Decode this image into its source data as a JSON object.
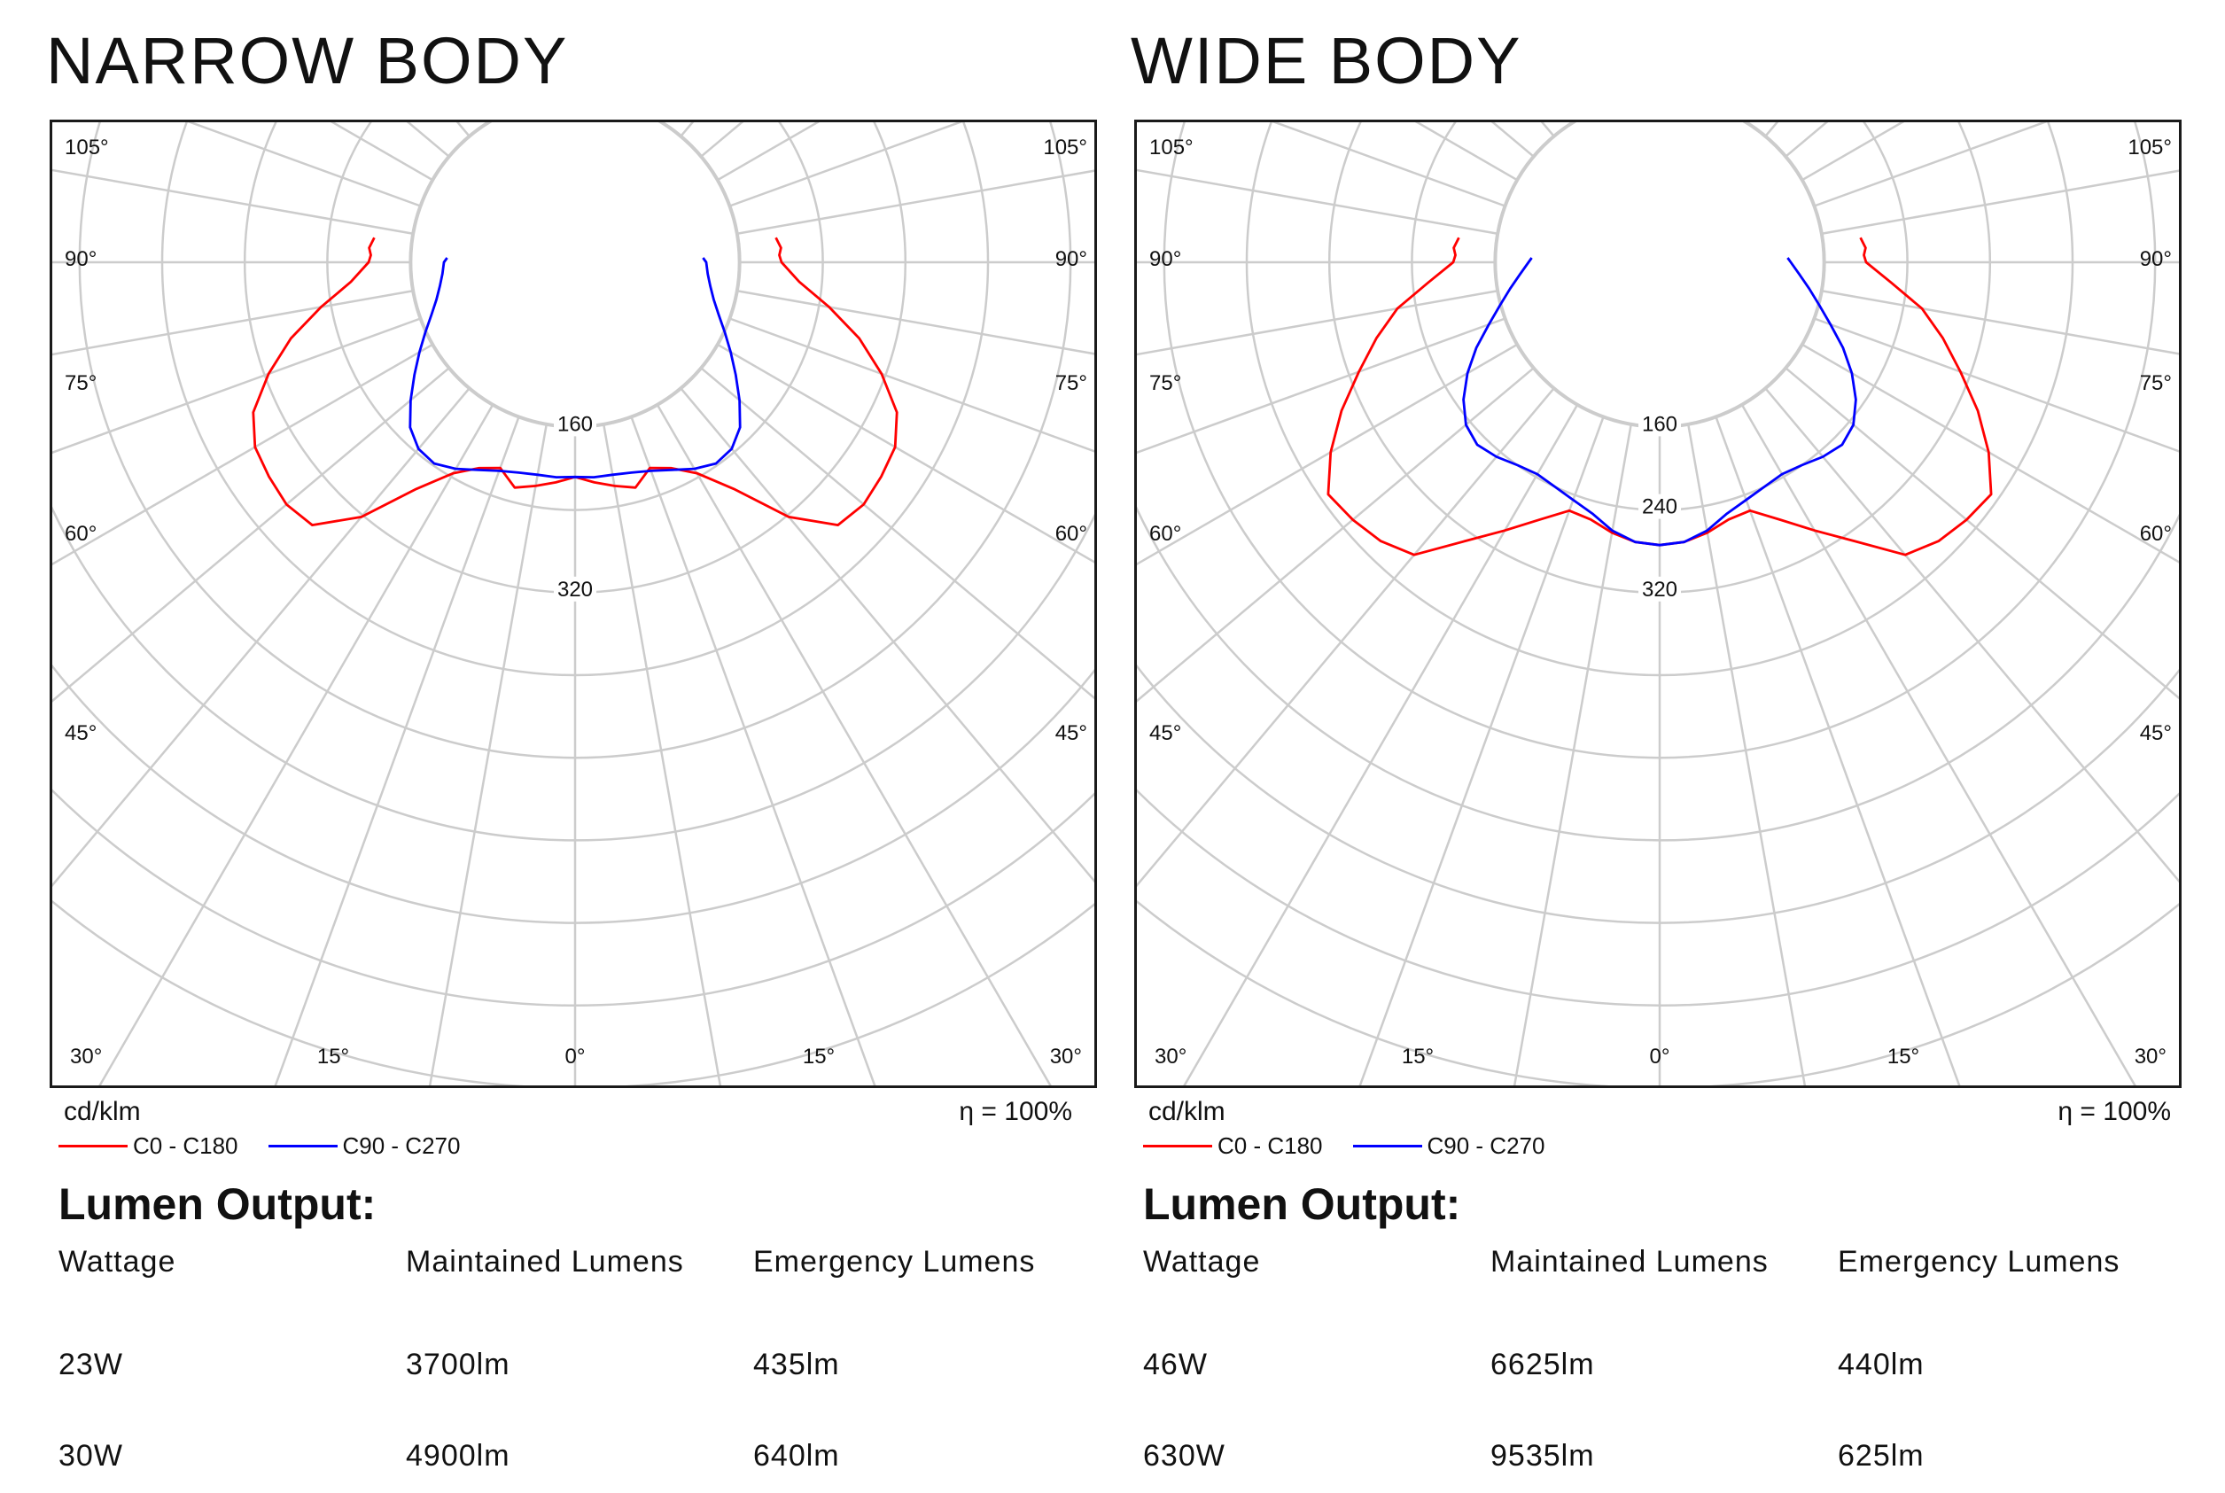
{
  "colors": {
    "series_c0": "#ff0000",
    "series_c90": "#0000ff",
    "grid": "#cccccc",
    "frame": "#1a1a1a"
  },
  "panels": [
    {
      "title": "NARROW BODY",
      "unit": "cd/klm",
      "eta": "η = 100%",
      "legend": [
        "C0 - C180",
        "C90 - C270"
      ],
      "lumen_title": "Lumen Output:",
      "table": {
        "headers": [
          "Wattage",
          "Maintained Lumens",
          "Emergency Lumens"
        ],
        "rows": [
          [
            "23W",
            "3700lm",
            "435lm"
          ],
          [
            "30W",
            "4900lm",
            "640lm"
          ]
        ]
      }
    },
    {
      "title": "WIDE BODY",
      "unit": "cd/klm",
      "eta": "η = 100%",
      "legend": [
        "C0 - C180",
        "C90 - C270"
      ],
      "lumen_title": "Lumen Output:",
      "table": {
        "headers": [
          "Wattage",
          "Maintained Lumens",
          "Emergency Lumens"
        ],
        "rows": [
          [
            "46W",
            "6625lm",
            "440lm"
          ],
          [
            "630W",
            "9535lm",
            "625lm"
          ]
        ]
      }
    }
  ],
  "chart_data": [
    {
      "type": "polar",
      "title": "NARROW BODY",
      "unit": "cd/klm",
      "ring_labels": [
        {
          "value": 160,
          "text": "160"
        },
        {
          "value": 320,
          "text": "320"
        }
      ],
      "angle_labels": [
        "0°",
        "15°",
        "30°",
        "45°",
        "60°",
        "75°",
        "90°",
        "105°"
      ],
      "series": [
        {
          "name": "C0 - C180",
          "points": [
            [
              0,
              208
            ],
            [
              5,
              214
            ],
            [
              10,
              220
            ],
            [
              15,
              226
            ],
            [
              20,
              212
            ],
            [
              25,
              220
            ],
            [
              30,
              236
            ],
            [
              35,
              268
            ],
            [
              40,
              322
            ],
            [
              45,
              360
            ],
            [
              50,
              365
            ],
            [
              55,
              362
            ],
            [
              60,
              358
            ],
            [
              65,
              344
            ],
            [
              70,
              316
            ],
            [
              75,
              285
            ],
            [
              80,
              250
            ],
            [
              85,
              218
            ],
            [
              90,
              200
            ],
            [
              92,
              198
            ],
            [
              94,
              200
            ],
            [
              97,
              196
            ]
          ]
        },
        {
          "name": "C90 - C270",
          "points": [
            [
              0,
              208
            ],
            [
              5,
              209
            ],
            [
              10,
              209
            ],
            [
              15,
              211
            ],
            [
              20,
              215
            ],
            [
              25,
              222
            ],
            [
              30,
              231
            ],
            [
              35,
              238
            ],
            [
              40,
              236
            ],
            [
              45,
              226
            ],
            [
              50,
              208
            ],
            [
              55,
              190
            ],
            [
              60,
              174
            ],
            [
              65,
              160
            ],
            [
              70,
              148
            ],
            [
              75,
              139
            ],
            [
              80,
              133
            ],
            [
              85,
              129
            ],
            [
              90,
              127
            ],
            [
              92,
              124
            ]
          ]
        }
      ]
    },
    {
      "type": "polar",
      "title": "WIDE BODY",
      "unit": "cd/klm",
      "ring_labels": [
        {
          "value": 160,
          "text": "160"
        },
        {
          "value": 240,
          "text": "240"
        },
        {
          "value": 320,
          "text": "320"
        }
      ],
      "angle_labels": [
        "0°",
        "15°",
        "30°",
        "45°",
        "60°",
        "75°",
        "90°",
        "105°"
      ],
      "series": [
        {
          "name": "C0 - C180",
          "points": [
            [
              0,
              274
            ],
            [
              5,
              272
            ],
            [
              10,
              266
            ],
            [
              15,
              258
            ],
            [
              20,
              256
            ],
            [
              25,
              275
            ],
            [
              30,
              300
            ],
            [
              35,
              330
            ],
            [
              40,
              370
            ],
            [
              45,
              382
            ],
            [
              50,
              388
            ],
            [
              55,
              392
            ],
            [
              60,
              368
            ],
            [
              65,
              340
            ],
            [
              70,
              310
            ],
            [
              75,
              284
            ],
            [
              80,
              258
            ],
            [
              85,
              225
            ],
            [
              90,
              200
            ],
            [
              92,
              198
            ],
            [
              94,
              200
            ],
            [
              97,
              196
            ]
          ]
        },
        {
          "name": "C90 - C270",
          "points": [
            [
              0,
              274
            ],
            [
              5,
              272
            ],
            [
              10,
              264
            ],
            [
              15,
              252
            ],
            [
              20,
              245
            ],
            [
              25,
              240
            ],
            [
              30,
              237
            ],
            [
              35,
              240
            ],
            [
              40,
              246
            ],
            [
              45,
              250
            ],
            [
              50,
              245
            ],
            [
              55,
              232
            ],
            [
              60,
              215
            ],
            [
              65,
              196
            ],
            [
              70,
              176
            ],
            [
              75,
              160
            ],
            [
              80,
              147
            ],
            [
              85,
              136
            ],
            [
              90,
              127
            ],
            [
              92,
              124
            ]
          ]
        }
      ]
    }
  ]
}
